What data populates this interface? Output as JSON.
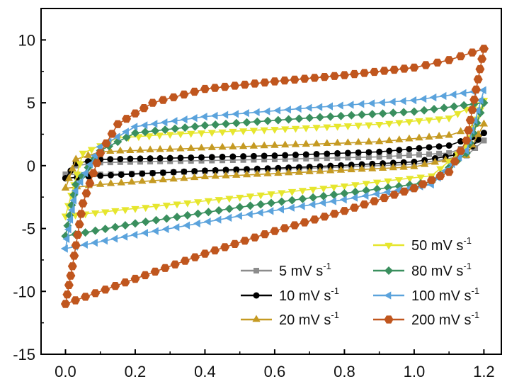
{
  "chart_data": {
    "type": "line",
    "xlim": [
      -0.07,
      1.25
    ],
    "ylim": [
      -15,
      12.5
    ],
    "xticks": [
      0.0,
      0.2,
      0.4,
      0.6,
      0.8,
      1.0,
      1.2
    ],
    "xtick_labels": [
      "0.0",
      "0.2",
      "0.4",
      "0.6",
      "0.8",
      "1.0",
      "1.2"
    ],
    "yticks": [
      -15,
      -10,
      -5,
      0,
      5,
      10
    ],
    "ytick_labels": [
      "-15",
      "-10",
      "-5",
      "0",
      "5",
      "10"
    ],
    "grid": false,
    "legend_placement": "bottom-right",
    "series": [
      {
        "name": "5 mV s",
        "unit_exponent": "-1",
        "color": "#8c8c8c",
        "marker": "square",
        "upper": [
          [
            0.0,
            -0.7
          ],
          [
            0.03,
            0.0
          ],
          [
            0.1,
            0.25
          ],
          [
            0.3,
            0.35
          ],
          [
            0.6,
            0.5
          ],
          [
            0.9,
            0.7
          ],
          [
            1.1,
            1.0
          ],
          [
            1.2,
            2.0
          ]
        ],
        "lower": [
          [
            1.2,
            2.0
          ],
          [
            1.15,
            0.8
          ],
          [
            1.0,
            0.1
          ],
          [
            0.7,
            -0.2
          ],
          [
            0.4,
            -0.45
          ],
          [
            0.1,
            -0.7
          ],
          [
            0.0,
            -0.7
          ]
        ]
      },
      {
        "name": "10 mV s",
        "unit_exponent": "-1",
        "color": "#000000",
        "marker": "circle",
        "upper": [
          [
            0.0,
            -1.0
          ],
          [
            0.03,
            0.2
          ],
          [
            0.1,
            0.5
          ],
          [
            0.3,
            0.6
          ],
          [
            0.6,
            0.8
          ],
          [
            0.9,
            1.1
          ],
          [
            1.1,
            1.6
          ],
          [
            1.2,
            2.6
          ]
        ],
        "lower": [
          [
            1.2,
            2.6
          ],
          [
            1.15,
            1.0
          ],
          [
            1.0,
            0.3
          ],
          [
            0.7,
            -0.1
          ],
          [
            0.4,
            -0.4
          ],
          [
            0.1,
            -0.8
          ],
          [
            0.0,
            -1.0
          ]
        ]
      },
      {
        "name": "20 mV s",
        "unit_exponent": "-1",
        "color": "#c59a22",
        "marker": "triangle-up",
        "upper": [
          [
            0.0,
            -1.8
          ],
          [
            0.03,
            0.5
          ],
          [
            0.1,
            1.1
          ],
          [
            0.3,
            1.3
          ],
          [
            0.6,
            1.6
          ],
          [
            0.9,
            1.9
          ],
          [
            1.1,
            2.4
          ],
          [
            1.2,
            3.3
          ]
        ],
        "lower": [
          [
            1.2,
            3.3
          ],
          [
            1.15,
            0.8
          ],
          [
            1.0,
            -0.1
          ],
          [
            0.7,
            -0.5
          ],
          [
            0.4,
            -0.9
          ],
          [
            0.1,
            -1.5
          ],
          [
            0.0,
            -1.8
          ]
        ]
      },
      {
        "name": "50 mV s",
        "unit_exponent": "-1",
        "color": "#e6e62e",
        "marker": "triangle-down",
        "upper": [
          [
            0.0,
            -4.0
          ],
          [
            0.05,
            1.0
          ],
          [
            0.15,
            2.2
          ],
          [
            0.3,
            2.5
          ],
          [
            0.6,
            2.9
          ],
          [
            0.9,
            3.3
          ],
          [
            1.1,
            3.8
          ],
          [
            1.2,
            5.2
          ]
        ],
        "lower": [
          [
            1.2,
            5.2
          ],
          [
            1.15,
            1.5
          ],
          [
            1.05,
            -0.8
          ],
          [
            0.8,
            -1.6
          ],
          [
            0.5,
            -2.5
          ],
          [
            0.2,
            -3.4
          ],
          [
            0.0,
            -4.0
          ]
        ]
      },
      {
        "name": "80 mV s",
        "unit_exponent": "-1",
        "color": "#3a8f5e",
        "marker": "diamond",
        "upper": [
          [
            0.0,
            -5.6
          ],
          [
            0.03,
            -1.5
          ],
          [
            0.1,
            1.2
          ],
          [
            0.2,
            2.6
          ],
          [
            0.4,
            3.2
          ],
          [
            0.7,
            3.8
          ],
          [
            1.0,
            4.3
          ],
          [
            1.2,
            5.0
          ]
        ],
        "lower": [
          [
            1.2,
            5.0
          ],
          [
            1.15,
            1.0
          ],
          [
            1.05,
            -1.3
          ],
          [
            0.8,
            -2.2
          ],
          [
            0.5,
            -3.3
          ],
          [
            0.2,
            -4.6
          ],
          [
            0.0,
            -5.6
          ]
        ]
      },
      {
        "name": "100 mV s",
        "unit_exponent": "-1",
        "color": "#5ba3dc",
        "marker": "triangle-left",
        "upper": [
          [
            0.0,
            -6.6
          ],
          [
            0.03,
            -2.0
          ],
          [
            0.1,
            1.5
          ],
          [
            0.2,
            3.1
          ],
          [
            0.4,
            3.9
          ],
          [
            0.7,
            4.6
          ],
          [
            1.0,
            5.2
          ],
          [
            1.2,
            6.0
          ]
        ],
        "lower": [
          [
            1.2,
            6.0
          ],
          [
            1.15,
            1.2
          ],
          [
            1.05,
            -1.5
          ],
          [
            0.8,
            -2.7
          ],
          [
            0.5,
            -4.0
          ],
          [
            0.2,
            -5.5
          ],
          [
            0.0,
            -6.6
          ]
        ]
      },
      {
        "name": "200 mV s",
        "unit_exponent": "-1",
        "color": "#c0561e",
        "marker": "hexagon",
        "upper": [
          [
            0.0,
            -11.0
          ],
          [
            0.02,
            -8.0
          ],
          [
            0.05,
            -3.0
          ],
          [
            0.1,
            1.0
          ],
          [
            0.15,
            3.3
          ],
          [
            0.25,
            5.0
          ],
          [
            0.4,
            6.1
          ],
          [
            0.6,
            6.7
          ],
          [
            0.8,
            7.2
          ],
          [
            1.0,
            7.8
          ],
          [
            1.1,
            8.4
          ],
          [
            1.2,
            9.3
          ]
        ],
        "lower": [
          [
            1.2,
            9.3
          ],
          [
            1.15,
            2.0
          ],
          [
            1.1,
            -0.5
          ],
          [
            1.0,
            -1.8
          ],
          [
            0.8,
            -3.6
          ],
          [
            0.6,
            -5.2
          ],
          [
            0.4,
            -7.0
          ],
          [
            0.2,
            -9.0
          ],
          [
            0.0,
            -11.0
          ]
        ]
      }
    ]
  }
}
